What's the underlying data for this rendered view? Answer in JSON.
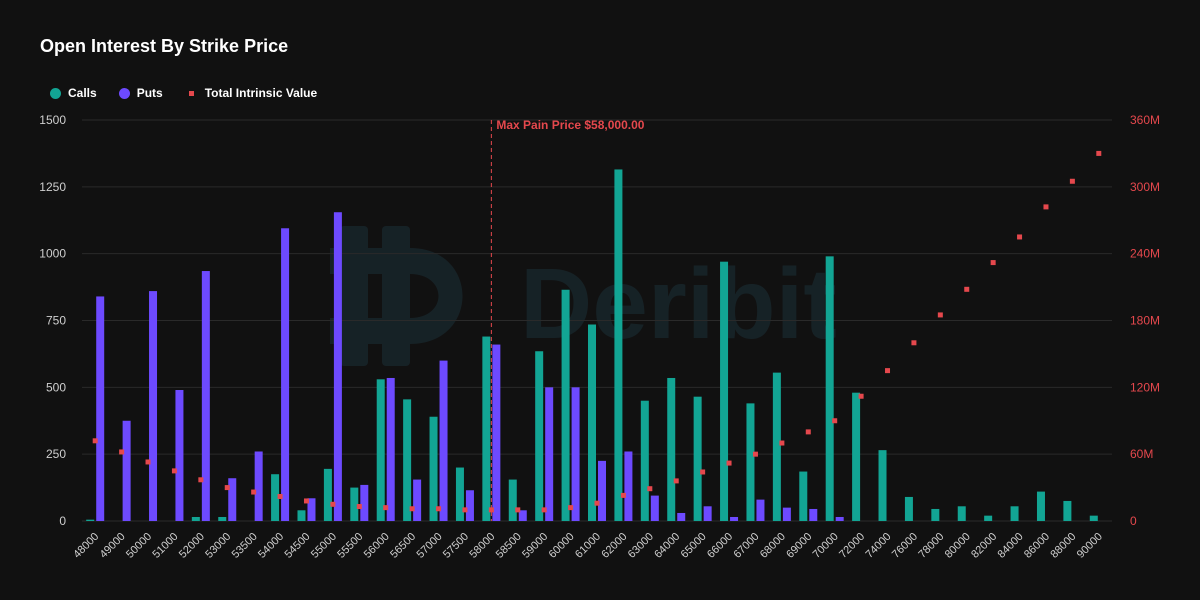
{
  "colors": {
    "calls": "#12a594",
    "puts": "#6d4aff",
    "intrinsic": "#e5484d",
    "grid": "#2a2a2a",
    "axis_text": "#cfcfcf",
    "right_axis_text": "#e5484d",
    "background": "#111111"
  },
  "watermark": {
    "text": "Deribit",
    "icon": "deribit-logo-icon"
  },
  "chart_data": {
    "type": "bar",
    "title": "Open Interest By Strike Price",
    "legend": [
      "Calls",
      "Puts",
      "Total Intrinsic Value"
    ],
    "legend_placement": "top-left",
    "grid": true,
    "categories": [
      "48000",
      "49000",
      "50000",
      "51000",
      "52000",
      "53000",
      "53500",
      "54000",
      "54500",
      "55000",
      "55500",
      "56000",
      "56500",
      "57000",
      "57500",
      "58000",
      "58500",
      "59000",
      "60000",
      "61000",
      "62000",
      "63000",
      "64000",
      "65000",
      "66000",
      "67000",
      "68000",
      "69000",
      "70000",
      "72000",
      "74000",
      "76000",
      "78000",
      "80000",
      "82000",
      "84000",
      "86000",
      "88000",
      "90000"
    ],
    "series": [
      {
        "name": "Calls",
        "axis": "left",
        "type": "bar",
        "values": [
          5,
          0,
          0,
          0,
          15,
          15,
          0,
          175,
          40,
          195,
          125,
          530,
          455,
          390,
          200,
          690,
          155,
          635,
          865,
          735,
          1315,
          450,
          535,
          465,
          970,
          440,
          555,
          185,
          990,
          480,
          265,
          90,
          45,
          55,
          20,
          55,
          110,
          75,
          20
        ]
      },
      {
        "name": "Puts",
        "axis": "left",
        "type": "bar",
        "values": [
          840,
          375,
          860,
          490,
          935,
          160,
          260,
          1095,
          85,
          1155,
          135,
          535,
          155,
          600,
          115,
          660,
          40,
          500,
          500,
          225,
          260,
          95,
          30,
          55,
          15,
          80,
          50,
          45,
          15,
          0,
          0,
          0,
          0,
          0,
          0,
          0,
          0,
          0,
          0
        ]
      },
      {
        "name": "Total Intrinsic Value",
        "axis": "right",
        "type": "scatter",
        "values": [
          72,
          62,
          53,
          45,
          37,
          30,
          26,
          22,
          18,
          15,
          13,
          12,
          11,
          11,
          10,
          10,
          10,
          10,
          12,
          16,
          23,
          29,
          36,
          44,
          52,
          60,
          70,
          80,
          90,
          112,
          135,
          160,
          185,
          208,
          232,
          255,
          282,
          305,
          330
        ]
      }
    ],
    "y_left": {
      "range": [
        0,
        1500
      ],
      "ticks": [
        "0",
        "250",
        "500",
        "750",
        "1000",
        "1250",
        "1500"
      ]
    },
    "y_right": {
      "range": [
        0,
        360
      ],
      "ticks": [
        "0",
        "60M",
        "120M",
        "180M",
        "240M",
        "300M",
        "360M"
      ]
    },
    "annotation": {
      "label": "Max Pain Price $58,000.00",
      "at_category": "58000"
    }
  }
}
